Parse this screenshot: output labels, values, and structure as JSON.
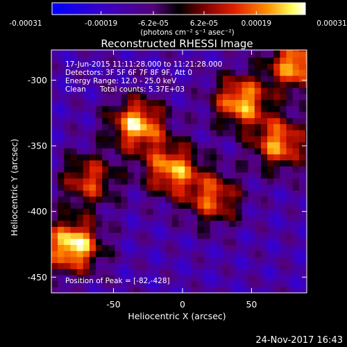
{
  "colorbar": {
    "ticks": [
      {
        "label": "-0.00031",
        "value": -0.00031
      },
      {
        "label": "-0.00019",
        "value": -0.00019
      },
      {
        "label": "-6.2e-05",
        "value": -6.2e-05
      },
      {
        "label": "6.2e-05",
        "value": 6.2e-05
      },
      {
        "label": "0.00019",
        "value": 0.00019
      },
      {
        "label": "0.00031",
        "value": 0.00031
      }
    ],
    "range": [
      -0.00031,
      0.00031
    ],
    "units_label": "(photons cm⁻² s⁻¹ asec⁻²)"
  },
  "chart_data": {
    "type": "heatmap",
    "title": "Reconstructed RHESSI Image",
    "xlabel": "Heliocentric X (arcsec)",
    "ylabel": "Heliocentric Y (arcsec)",
    "xlim": [
      -95,
      90
    ],
    "ylim": [
      -462,
      -277
    ],
    "xticks": [
      {
        "label": "-50",
        "value": -50
      },
      {
        "label": "0",
        "value": 0
      },
      {
        "label": "50",
        "value": 50
      }
    ],
    "yticks": [
      {
        "label": "-300",
        "value": -300
      },
      {
        "label": "-350",
        "value": -350
      },
      {
        "label": "-400",
        "value": -400
      },
      {
        "label": "-450",
        "value": -450
      }
    ],
    "grid": false,
    "sources": [
      {
        "x": -82,
        "y": -428,
        "peak": 0.00031
      },
      {
        "x": -35,
        "y": -336,
        "peak": 0.00026
      },
      {
        "x": -10,
        "y": -370,
        "peak": 0.00022
      },
      {
        "x": 20,
        "y": -392,
        "peak": 0.00016
      },
      {
        "x": 40,
        "y": -318,
        "peak": 0.00024
      },
      {
        "x": 68,
        "y": -350,
        "peak": 0.00021
      },
      {
        "x": 80,
        "y": -290,
        "peak": 0.00024
      },
      {
        "x": -70,
        "y": -378,
        "peak": 0.00014
      }
    ],
    "annotations": {
      "time_range": "17-Jun-2015 11:11:28.000 to 11:21:28.000",
      "detectors": "Detectors: 3F 5F 6F 7F 8F 9F, Att 0",
      "energy": "Energy Range: 12.0 - 25.0 keV",
      "method": "Clean",
      "counts": "Total counts: 5.37E+03",
      "peak": "Position of Peak = [-82,-428]"
    }
  },
  "footer": {
    "date": "24-Nov-2017 16:43"
  }
}
